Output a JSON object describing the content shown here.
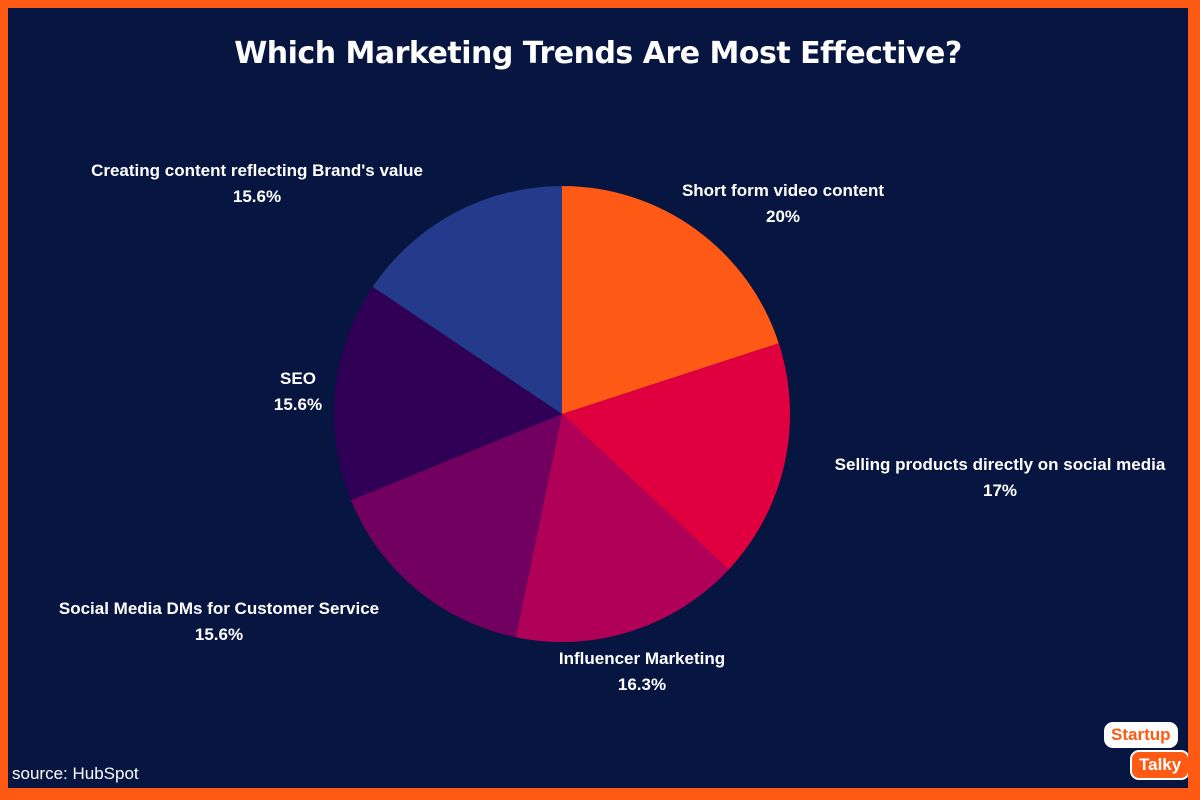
{
  "title": "Which Marketing Trends Are Most Effective?",
  "source": "source: HubSpot",
  "logo": {
    "line1": "Startup",
    "line2": "Talky"
  },
  "chart_data": {
    "type": "pie",
    "title": "Which Marketing Trends Are Most Effective?",
    "start_angle_deg": 0,
    "direction": "clockwise",
    "legend": "none",
    "slices": [
      {
        "label": "Short form video content",
        "value": 20,
        "value_label": "20%",
        "color": "#fe5a16"
      },
      {
        "label": "Selling products directly on social media",
        "value": 17,
        "value_label": "17%",
        "color": "#e0003f"
      },
      {
        "label": "Influencer Marketing",
        "value": 16.3,
        "value_label": "16.3%",
        "color": "#b00057"
      },
      {
        "label": "Social Media DMs for Customer Service",
        "value": 15.6,
        "value_label": "15.6%",
        "color": "#720061"
      },
      {
        "label": "SEO",
        "value": 15.6,
        "value_label": "15.6%",
        "color": "#2f0055"
      },
      {
        "label": "Creating content reflecting Brand's value",
        "value": 15.6,
        "value_label": "15.6%",
        "color": "#243a8a"
      }
    ]
  }
}
